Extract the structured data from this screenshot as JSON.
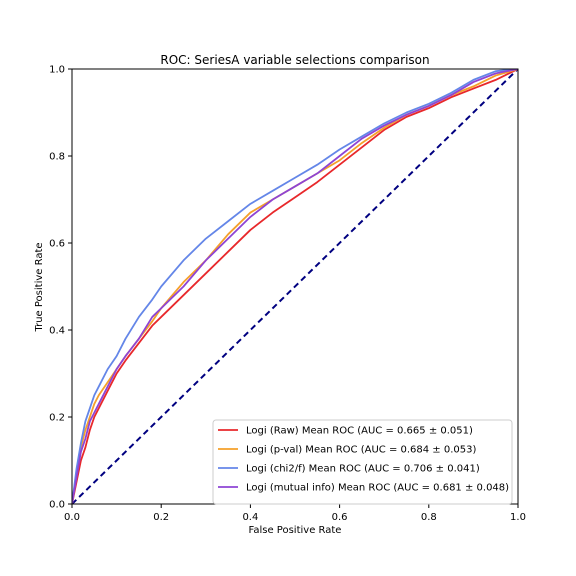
{
  "chart_data": {
    "type": "line",
    "title": "ROC: SeriesA variable selections comparison",
    "xlabel": "False Positive Rate",
    "ylabel": "True Positive Rate",
    "xlim": [
      0.0,
      1.0
    ],
    "ylim": [
      0.0,
      1.0
    ],
    "xticks": [
      "0.0",
      "0.2",
      "0.4",
      "0.6",
      "0.8",
      "1.0"
    ],
    "yticks": [
      "0.0",
      "0.2",
      "0.4",
      "0.6",
      "0.8",
      "1.0"
    ],
    "grid": false,
    "legend_position": "lower-right",
    "diagonal": {
      "x": [
        0,
        1
      ],
      "y": [
        0,
        1
      ],
      "color": "#000080",
      "style": "dashed"
    },
    "x": [
      0,
      0.01,
      0.02,
      0.03,
      0.04,
      0.05,
      0.06,
      0.08,
      0.1,
      0.12,
      0.15,
      0.18,
      0.2,
      0.25,
      0.3,
      0.35,
      0.4,
      0.45,
      0.5,
      0.55,
      0.6,
      0.65,
      0.7,
      0.75,
      0.8,
      0.85,
      0.9,
      0.95,
      1.0
    ],
    "series": [
      {
        "name": "Logi (Raw) Mean ROC (AUC = 0.665 ± 0.051)",
        "color": "#e8282b",
        "y": [
          0,
          0.05,
          0.1,
          0.13,
          0.17,
          0.2,
          0.22,
          0.26,
          0.3,
          0.33,
          0.37,
          0.41,
          0.43,
          0.48,
          0.53,
          0.58,
          0.63,
          0.67,
          0.705,
          0.74,
          0.78,
          0.82,
          0.86,
          0.89,
          0.91,
          0.935,
          0.955,
          0.975,
          1.0
        ]
      },
      {
        "name": "Logi (p-val) Mean ROC (AUC = 0.684 ± 0.053)",
        "color": "#f5a02a",
        "y": [
          0,
          0.07,
          0.13,
          0.17,
          0.2,
          0.23,
          0.25,
          0.28,
          0.31,
          0.34,
          0.38,
          0.42,
          0.45,
          0.51,
          0.56,
          0.62,
          0.67,
          0.7,
          0.73,
          0.76,
          0.79,
          0.83,
          0.865,
          0.895,
          0.915,
          0.94,
          0.96,
          0.985,
          1.0
        ]
      },
      {
        "name": "Logi (chi2/f) Mean ROC (AUC = 0.706 ± 0.041)",
        "color": "#6486e8",
        "y": [
          0,
          0.08,
          0.14,
          0.19,
          0.22,
          0.25,
          0.27,
          0.31,
          0.34,
          0.38,
          0.43,
          0.47,
          0.5,
          0.56,
          0.61,
          0.65,
          0.69,
          0.72,
          0.75,
          0.78,
          0.815,
          0.845,
          0.875,
          0.9,
          0.92,
          0.945,
          0.975,
          0.995,
          1.0
        ]
      },
      {
        "name": "Logi (mutual info) Mean ROC (AUC = 0.681 ± 0.048)",
        "color": "#8e44d4",
        "y": [
          0,
          0.06,
          0.12,
          0.15,
          0.19,
          0.21,
          0.23,
          0.27,
          0.31,
          0.34,
          0.38,
          0.43,
          0.45,
          0.5,
          0.56,
          0.61,
          0.66,
          0.7,
          0.73,
          0.76,
          0.8,
          0.84,
          0.87,
          0.895,
          0.915,
          0.94,
          0.97,
          0.99,
          1.0
        ]
      }
    ]
  }
}
